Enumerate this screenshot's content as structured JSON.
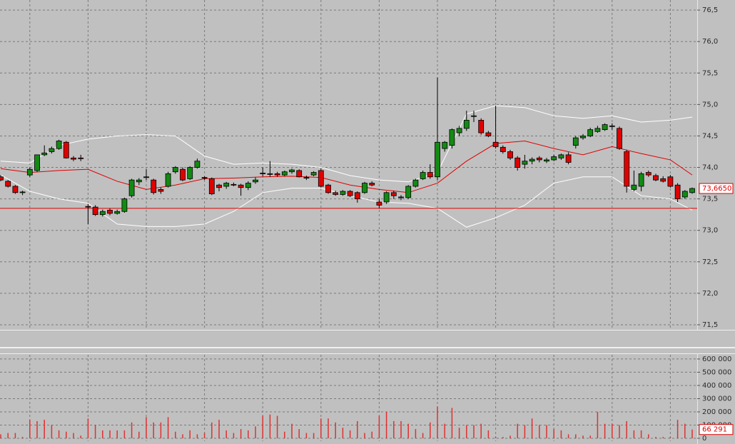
{
  "chart_data": [
    {
      "type": "candlestick",
      "up_color": "#138a13",
      "down_color": "#e00000",
      "open": [
        73.85,
        73.78,
        73.7,
        73.6,
        73.88,
        73.95,
        74.2,
        74.25,
        74.3,
        74.4,
        74.15,
        74.15,
        73.38,
        73.37,
        73.25,
        73.32,
        73.27,
        73.3,
        73.55,
        73.77,
        73.84,
        73.8,
        73.65,
        73.7,
        73.93,
        73.97,
        73.82,
        74.0,
        73.84,
        73.82,
        73.72,
        73.7,
        73.73,
        73.72,
        73.68,
        73.77,
        73.9,
        73.9,
        73.9,
        73.88,
        73.93,
        73.95,
        73.83,
        73.88,
        73.95,
        73.72,
        73.6,
        73.57,
        73.62,
        73.6,
        73.6,
        73.75,
        73.45,
        73.45,
        73.6,
        73.52,
        73.52,
        73.7,
        73.82,
        73.92,
        73.85,
        74.3,
        74.35,
        74.55,
        74.62,
        74.81,
        74.75,
        74.55,
        74.4,
        74.32,
        74.25,
        74.15,
        74.05,
        74.1,
        74.15,
        74.1,
        74.12,
        74.15,
        74.2,
        74.35,
        74.47,
        74.5,
        74.57,
        74.6,
        74.65,
        74.62,
        74.25,
        73.65,
        73.7,
        73.92,
        73.87,
        73.82,
        73.85,
        73.72,
        73.53,
        73.6
      ],
      "high": [
        73.88,
        73.8,
        73.72,
        73.63,
        74.0,
        74.2,
        74.35,
        74.33,
        74.44,
        74.42,
        74.18,
        74.2,
        73.42,
        73.4,
        73.33,
        73.35,
        73.33,
        73.52,
        73.82,
        73.83,
        73.97,
        73.82,
        73.68,
        73.93,
        74.02,
        74.0,
        74.02,
        74.14,
        73.86,
        73.84,
        73.74,
        73.77,
        73.76,
        73.74,
        73.78,
        73.84,
        74.0,
        74.1,
        73.93,
        73.95,
        73.98,
        73.97,
        73.87,
        73.94,
        73.98,
        73.74,
        73.63,
        73.64,
        73.64,
        73.62,
        73.77,
        73.78,
        73.5,
        73.62,
        73.63,
        73.56,
        73.72,
        73.82,
        73.95,
        74.05,
        75.43,
        74.42,
        74.62,
        74.66,
        74.9,
        74.9,
        74.78,
        74.58,
        74.98,
        74.35,
        74.28,
        74.18,
        74.2,
        74.16,
        74.18,
        74.15,
        74.2,
        74.22,
        74.24,
        74.5,
        74.53,
        74.63,
        74.66,
        74.7,
        74.7,
        74.65,
        74.28,
        73.95,
        73.93,
        73.95,
        73.9,
        73.86,
        73.88,
        73.75,
        73.64,
        73.68
      ],
      "low": [
        73.78,
        73.68,
        73.58,
        73.56,
        73.85,
        73.93,
        74.18,
        74.22,
        74.28,
        74.14,
        74.1,
        74.1,
        73.1,
        73.23,
        73.22,
        73.24,
        73.25,
        73.28,
        73.52,
        73.72,
        73.8,
        73.57,
        73.58,
        73.68,
        73.9,
        73.78,
        73.8,
        73.98,
        73.8,
        73.56,
        73.62,
        73.66,
        73.7,
        73.55,
        73.64,
        73.74,
        73.86,
        73.85,
        73.85,
        73.86,
        73.9,
        73.84,
        73.8,
        73.86,
        73.68,
        73.58,
        73.55,
        73.55,
        73.53,
        73.44,
        73.58,
        73.7,
        73.35,
        73.42,
        73.5,
        73.48,
        73.5,
        73.68,
        73.8,
        73.82,
        73.8,
        74.25,
        74.3,
        74.5,
        74.58,
        74.72,
        74.52,
        74.48,
        74.3,
        74.22,
        74.12,
        73.95,
        73.98,
        74.05,
        74.08,
        74.07,
        74.1,
        74.12,
        74.05,
        74.3,
        74.44,
        74.48,
        74.55,
        74.58,
        74.6,
        74.28,
        73.6,
        73.62,
        73.62,
        73.85,
        73.78,
        73.76,
        73.68,
        73.45,
        73.5,
        73.58
      ],
      "close": [
        73.8,
        73.7,
        73.6,
        73.61,
        73.97,
        74.2,
        74.23,
        74.3,
        74.42,
        74.15,
        74.13,
        74.14,
        73.37,
        73.25,
        73.3,
        73.27,
        73.3,
        73.5,
        73.8,
        73.8,
        73.85,
        73.6,
        73.62,
        73.9,
        74.0,
        73.8,
        74.0,
        74.1,
        73.83,
        73.58,
        73.68,
        73.75,
        73.72,
        73.68,
        73.75,
        73.8,
        73.91,
        73.89,
        73.88,
        73.93,
        73.96,
        73.85,
        73.84,
        73.92,
        73.7,
        73.6,
        73.57,
        73.62,
        73.55,
        73.5,
        73.75,
        73.72,
        73.4,
        73.6,
        73.55,
        73.53,
        73.7,
        73.8,
        73.92,
        73.85,
        74.4,
        74.4,
        74.6,
        74.62,
        74.75,
        74.82,
        74.55,
        74.5,
        74.33,
        74.25,
        74.15,
        74.0,
        74.1,
        74.13,
        74.12,
        74.12,
        74.17,
        74.2,
        74.08,
        74.47,
        74.5,
        74.6,
        74.62,
        74.68,
        74.66,
        74.3,
        73.7,
        73.72,
        73.9,
        73.88,
        73.8,
        73.78,
        73.7,
        73.5,
        73.62,
        73.665
      ],
      "bands": {
        "x": [
          0,
          4,
          8,
          12,
          16,
          20,
          24,
          28,
          32,
          36,
          40,
          44,
          48,
          52,
          56,
          60,
          64,
          68,
          72,
          76,
          80,
          84,
          88,
          92,
          95
        ],
        "series": [
          {
            "color": "#ffffff",
            "values": [
              74.1,
              74.07,
              74.35,
              74.45,
              74.5,
              74.52,
              74.5,
              74.18,
              74.05,
              74.07,
              74.05,
              74.0,
              73.87,
              73.8,
              73.77,
              73.92,
              74.85,
              74.98,
              74.95,
              74.82,
              74.78,
              74.82,
              74.72,
              74.75,
              74.8
            ]
          },
          {
            "color": "#e00000",
            "values": [
              73.98,
              73.92,
              73.95,
              73.97,
              73.78,
              73.65,
              73.72,
              73.82,
              73.83,
              73.85,
              73.86,
              73.84,
              73.72,
              73.65,
              73.6,
              73.75,
              74.1,
              74.38,
              74.42,
              74.3,
              74.2,
              74.33,
              74.22,
              74.12,
              73.88
            ]
          },
          {
            "color": "#ffffff",
            "values": [
              73.88,
              73.62,
              73.5,
              73.43,
              73.1,
              73.06,
              73.06,
              73.1,
              73.3,
              73.6,
              73.67,
              73.67,
              73.55,
              73.45,
              73.43,
              73.35,
              73.05,
              73.2,
              73.4,
              73.75,
              73.85,
              73.85,
              73.55,
              73.5,
              73.32
            ]
          }
        ]
      },
      "hline": {
        "value": 73.35,
        "color": "#e00000"
      },
      "last_label": {
        "value": 73.665,
        "label": "73,6650"
      },
      "ylim": [
        71.42,
        76.66
      ],
      "yticks": [
        {
          "value": 71.5,
          "label": "71,5"
        },
        {
          "value": 72.0,
          "label": "72,0"
        },
        {
          "value": 72.5,
          "label": "72,5"
        },
        {
          "value": 73.0,
          "label": "73,0"
        },
        {
          "value": 73.5,
          "label": "73,5"
        },
        {
          "value": 74.0,
          "label": "74,0"
        },
        {
          "value": 74.5,
          "label": "74,5"
        },
        {
          "value": 75.0,
          "label": "75,0"
        },
        {
          "value": 75.5,
          "label": "75,5"
        },
        {
          "value": 76.0,
          "label": "76,0"
        },
        {
          "value": 76.5,
          "label": "76,5"
        }
      ],
      "grid": true
    },
    {
      "type": "bar",
      "color": "#e03030",
      "values": [
        30000,
        40000,
        40000,
        10000,
        140000,
        130000,
        140000,
        100000,
        60000,
        50000,
        40000,
        20000,
        150000,
        100000,
        60000,
        60000,
        60000,
        60000,
        120000,
        50000,
        160000,
        120000,
        120000,
        160000,
        50000,
        30000,
        60000,
        30000,
        40000,
        120000,
        140000,
        60000,
        40000,
        70000,
        60000,
        90000,
        170000,
        180000,
        170000,
        50000,
        110000,
        70000,
        40000,
        40000,
        150000,
        150000,
        120000,
        80000,
        60000,
        130000,
        40000,
        50000,
        170000,
        200000,
        130000,
        130000,
        110000,
        70000,
        40000,
        120000,
        240000,
        110000,
        230000,
        80000,
        100000,
        100000,
        110000,
        60000,
        10000,
        10000,
        20000,
        110000,
        100000,
        150000,
        100000,
        100000,
        70000,
        60000,
        30000,
        30000,
        20000,
        20000,
        200000,
        110000,
        110000,
        100000,
        130000,
        60000,
        60000,
        30000,
        10000,
        10000,
        10000,
        140000,
        110000,
        66291
      ],
      "last_label": {
        "value": 66291,
        "label": "66 291"
      },
      "ylim": [
        -21600,
        632000
      ],
      "yticks": [
        0,
        {
          "value": 100000,
          "label": "100 000"
        },
        {
          "value": 200000,
          "label": "200 000"
        },
        {
          "value": 300000,
          "label": "300 000"
        },
        {
          "value": 400000,
          "label": "400 000"
        },
        {
          "value": 500000,
          "label": "500 000"
        },
        {
          "value": 600000,
          "label": "600 000"
        }
      ],
      "grid": true
    }
  ]
}
